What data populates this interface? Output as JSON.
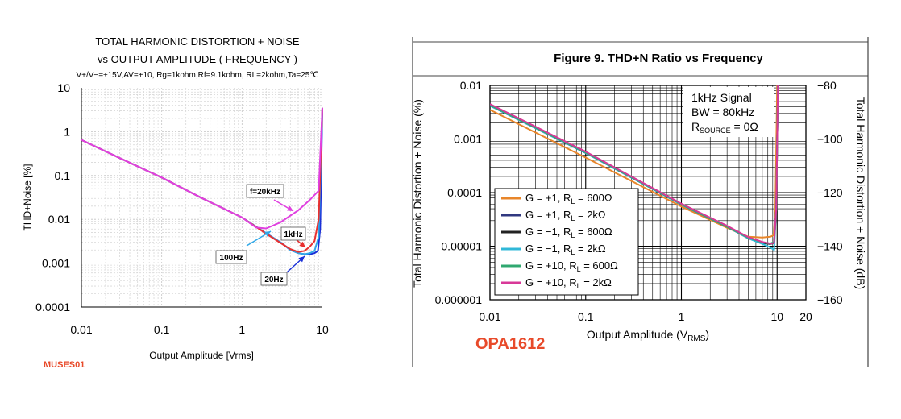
{
  "left_figure": {
    "title_line1": "TOTAL HARMONIC DISTORTION + NOISE",
    "title_line2": "vs OUTPUT AMPLITUDE ( FREQUENCY )",
    "conditions": "V+/V−=±15V,AV=+10, Rg=1kohm,Rf=9.1kohm, RL=2kohm,Ta=25℃",
    "brand": "MUSES01"
  },
  "right_figure": {
    "title": "Figure 9. THD+N Ratio vs Frequency",
    "info_box": [
      "1kHz Signal",
      "BW = 80kHz",
      "RSOURCE = 0Ω"
    ],
    "brand": "OPA1612",
    "right_axis_label": "Total Harmonic Distortion + Noise (dB)",
    "right_ticks": [
      "−80",
      "−100",
      "−120",
      "−140",
      "−160"
    ]
  },
  "chart_data": [
    {
      "type": "line",
      "title": "TOTAL HARMONIC DISTORTION + NOISE vs OUTPUT AMPLITUDE ( FREQUENCY )",
      "xlabel": "Output Amplitude [Vrms]",
      "ylabel": "THD+Noise [%]",
      "xscale": "log",
      "yscale": "log",
      "xlim": [
        0.01,
        10
      ],
      "ylim": [
        0.0001,
        10
      ],
      "x_ticks": [
        "0.01",
        "0.1",
        "1",
        "10"
      ],
      "y_ticks": [
        "0.0001",
        "0.001",
        "0.01",
        "0.1",
        "1",
        "10"
      ],
      "grid": true,
      "series": [
        {
          "name": "f=20kHz",
          "color": "#e040e0",
          "x": [
            0.01,
            0.03,
            0.1,
            0.3,
            1,
            1.5,
            2,
            3,
            5,
            7,
            9,
            10
          ],
          "y": [
            0.65,
            0.25,
            0.09,
            0.032,
            0.011,
            0.0065,
            0.0062,
            0.0085,
            0.016,
            0.028,
            0.045,
            3.5
          ]
        },
        {
          "name": "1kHz",
          "color": "#e83030",
          "x": [
            0.01,
            0.03,
            0.1,
            0.3,
            1,
            2,
            3,
            4,
            5,
            6,
            7,
            8,
            9,
            10
          ],
          "y": [
            0.65,
            0.25,
            0.09,
            0.032,
            0.011,
            0.0047,
            0.0029,
            0.0021,
            0.0018,
            0.0019,
            0.0024,
            0.0032,
            0.01,
            3.5
          ]
        },
        {
          "name": "100Hz",
          "color": "#30a8e8",
          "x": [
            0.01,
            0.03,
            0.1,
            0.3,
            1,
            2,
            3,
            4,
            5,
            6,
            7,
            8,
            9,
            10
          ],
          "y": [
            0.65,
            0.25,
            0.09,
            0.032,
            0.011,
            0.0048,
            0.003,
            0.002,
            0.0017,
            0.0016,
            0.0017,
            0.0019,
            0.004,
            3.5
          ]
        },
        {
          "name": "20Hz",
          "color": "#1a30d8",
          "x": [
            0.01,
            0.03,
            0.1,
            0.3,
            1,
            2,
            3,
            4,
            5,
            6,
            7,
            8,
            8.8,
            9.4,
            10
          ],
          "y": [
            0.65,
            0.25,
            0.09,
            0.032,
            0.011,
            0.0048,
            0.003,
            0.002,
            0.0017,
            0.0016,
            0.0016,
            0.0017,
            0.0019,
            0.006,
            3.5
          ]
        }
      ],
      "annotations": [
        {
          "text": "f=20kHz",
          "color": "#e040e0"
        },
        {
          "text": "1kHz",
          "color": "#e83030"
        },
        {
          "text": "100Hz",
          "color": "#30a8e8"
        },
        {
          "text": "20Hz",
          "color": "#1a30d8"
        }
      ]
    },
    {
      "type": "line",
      "title": "Figure 9. THD+N Ratio vs Frequency",
      "xlabel": "Output Amplitude (VRMS)",
      "ylabel": "Total Harmonic Distortion + Noise (%)",
      "y2label": "Total Harmonic Distortion + Noise (dB)",
      "xscale": "log",
      "yscale": "log",
      "xlim": [
        0.01,
        20
      ],
      "ylim": [
        1e-06,
        0.01
      ],
      "x_ticks": [
        "0.01",
        "0.1",
        "1",
        "10",
        "20"
      ],
      "y_ticks": [
        "0.000001",
        "0.00001",
        "0.0001",
        "0.001",
        "0.01"
      ],
      "y2_ticks": [
        "−160",
        "−140",
        "−120",
        "−100",
        "−80"
      ],
      "grid": true,
      "legend_position": "lower-left",
      "series": [
        {
          "name": "G = +1, RL = 600Ω",
          "color": "#e8862a",
          "x": [
            0.01,
            0.1,
            1,
            3,
            5,
            7,
            8.5,
            9.2,
            9.6,
            10
          ],
          "y": [
            0.0035,
            0.00045,
            5.5e-05,
            2.2e-05,
            1.5e-05,
            1.45e-05,
            1.5e-05,
            1.6e-05,
            5e-05,
            0.01
          ]
        },
        {
          "name": "G = +1, RL = 2kΩ",
          "color": "#303880",
          "x": [
            0.01,
            0.1,
            1,
            3,
            5,
            7,
            8.5,
            9.3,
            9.8,
            10.2
          ],
          "y": [
            0.0042,
            0.00055,
            6e-05,
            2.3e-05,
            1.4e-05,
            1.15e-05,
            1.1e-05,
            1.15e-05,
            5e-05,
            0.01
          ]
        },
        {
          "name": "G = −1, RL = 600Ω",
          "color": "#222222",
          "x": [
            0.01,
            0.1,
            1,
            3,
            5,
            7,
            8.5,
            9.3,
            9.8,
            10.2
          ],
          "y": [
            0.0042,
            0.00055,
            6e-05,
            2.3e-05,
            1.4e-05,
            1.15e-05,
            1.1e-05,
            1.15e-05,
            5e-05,
            0.01
          ]
        },
        {
          "name": "G = −1, RL = 2kΩ",
          "color": "#30b8d8",
          "x": [
            0.01,
            0.1,
            1,
            3,
            5,
            7,
            8.5,
            9.3,
            9.8,
            10.2
          ],
          "y": [
            0.0042,
            0.00055,
            6e-05,
            2.3e-05,
            1.4e-05,
            1.1e-05,
            9.5e-06,
            8.5e-06,
            5e-05,
            0.01
          ]
        },
        {
          "name": "G = +10, RL = 600Ω",
          "color": "#30a870",
          "x": [
            0.01,
            0.1,
            1,
            3,
            5,
            7,
            8.5,
            9.3,
            9.8,
            10.2
          ],
          "y": [
            0.0043,
            0.00056,
            6.1e-05,
            2.3e-05,
            1.45e-05,
            1.18e-05,
            1.12e-05,
            1.2e-05,
            5e-05,
            0.01
          ]
        },
        {
          "name": "G = +10, RL = 2kΩ",
          "color": "#d83898",
          "x": [
            0.01,
            0.1,
            1,
            3,
            5,
            7,
            8.5,
            9.3,
            9.8,
            10.2
          ],
          "y": [
            0.0045,
            0.00058,
            6.2e-05,
            2.4e-05,
            1.48e-05,
            1.2e-05,
            1.12e-05,
            1.15e-05,
            5e-05,
            0.01
          ]
        }
      ]
    }
  ]
}
